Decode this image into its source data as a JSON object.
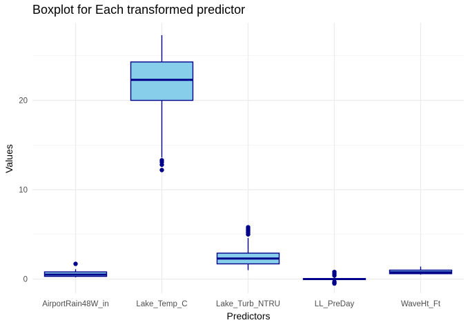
{
  "chart_data": {
    "type": "boxplot",
    "title": "Boxplot for Each transformed predictor",
    "xlabel": "Predictors",
    "ylabel": "Values",
    "ylim": [
      -2.5,
      27.5
    ],
    "yticks": [
      0,
      10,
      20
    ],
    "grid": true,
    "legend": "none",
    "colors": {
      "fill": "#87ceeb",
      "stroke": "#00008b",
      "grid": "#ebebeb"
    },
    "categories": [
      "AirportRain48W_in",
      "Lake_Temp_C",
      "Lake_Turb_NTRU",
      "LL_PreDay",
      "WaveHt_Ft"
    ],
    "boxes": [
      {
        "category": "AirportRain48W_in",
        "min": 0.2,
        "q1": 0.3,
        "median": 0.5,
        "q3": 0.8,
        "max": 1.1,
        "outliers": [
          1.7
        ]
      },
      {
        "category": "Lake_Temp_C",
        "min": 13.6,
        "q1": 20.0,
        "median": 22.3,
        "q3": 24.3,
        "max": 27.3,
        "outliers": [
          13.3,
          13.1,
          12.8,
          12.2
        ]
      },
      {
        "category": "Lake_Turb_NTRU",
        "min": 1.0,
        "q1": 1.7,
        "median": 2.3,
        "q3": 2.9,
        "max": 4.6,
        "outliers": [
          5.0,
          5.2,
          5.4,
          5.6,
          5.8
        ]
      },
      {
        "category": "LL_PreDay",
        "min": -0.2,
        "q1": -0.05,
        "median": 0.0,
        "q3": 0.05,
        "max": 0.2,
        "outliers": [
          -0.5,
          -0.4,
          -0.3,
          0.4,
          0.6,
          0.8
        ]
      },
      {
        "category": "WaveHt_Ft",
        "min": 0.5,
        "q1": 0.6,
        "median": 0.75,
        "q3": 1.0,
        "max": 1.4,
        "outliers": []
      }
    ]
  }
}
